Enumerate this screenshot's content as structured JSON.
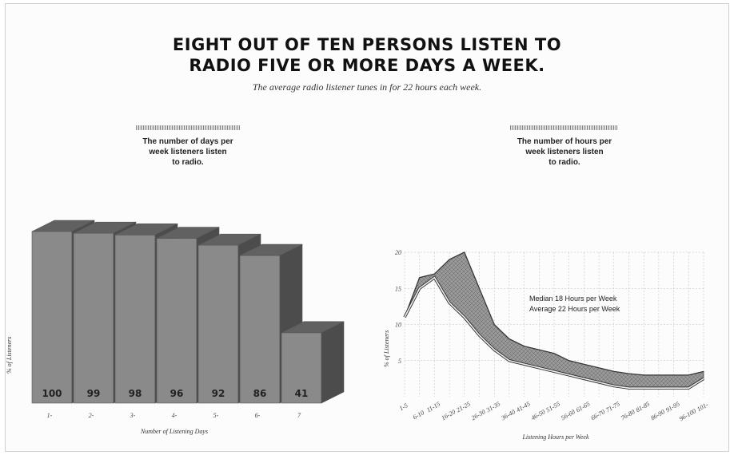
{
  "title_line1": "EIGHT OUT OF TEN PERSONS LISTEN TO",
  "title_line2": "RADIO FIVE OR MORE DAYS A WEEK.",
  "subtitle": "The average radio listener tunes in for 22 hours each week.",
  "chart_data": [
    {
      "type": "bar",
      "caption": [
        "The number of days per",
        "week listeners listen",
        "to radio."
      ],
      "categories": [
        "1-",
        "2-",
        "3-",
        "4-",
        "5-",
        "6-",
        "7"
      ],
      "values": [
        100,
        99,
        98,
        96,
        92,
        86,
        41
      ],
      "value_labels": [
        "100",
        "99",
        "98",
        "96",
        "92",
        "86",
        "41"
      ],
      "xlabel": "Number of Listening Days",
      "ylabel": "% of Listeners",
      "ylim": [
        0,
        100
      ],
      "bar_color": "#8a8a8a"
    },
    {
      "type": "area",
      "caption": [
        "The number of hours per",
        "week listeners listen",
        "to radio."
      ],
      "categories": [
        "1-5",
        "6-10",
        "11-15",
        "16-20",
        "21-25",
        "26-30",
        "31-35",
        "36-40",
        "41-45",
        "46-50",
        "51-55",
        "56-60",
        "61-65",
        "66-70",
        "71-75",
        "76-80",
        "81-85",
        "86-90",
        "91-95",
        "96-100",
        "101-"
      ],
      "series": [
        {
          "values": [
            11,
            16.5,
            17,
            19,
            20,
            15,
            10,
            8,
            7,
            6.5,
            6,
            5,
            4.5,
            4,
            3.5,
            3.2,
            3,
            3,
            3,
            3,
            3.5
          ]
        },
        {
          "values": [
            11,
            15,
            16.5,
            13,
            11,
            8.5,
            6.5,
            5,
            4.5,
            4,
            3.5,
            3,
            2.5,
            2,
            1.5,
            1.2,
            1.2,
            1.2,
            1.2,
            1.2,
            2.5
          ]
        }
      ],
      "yticks": [
        5,
        10,
        15,
        20
      ],
      "ylim": [
        0,
        20
      ],
      "xlabel": "Listening Hours per Week",
      "ylabel": "% of Listeners",
      "legend": [
        "Median 18 Hours per Week",
        "Average 22 Hours per Week"
      ],
      "fill_color": "#9a9a9a"
    }
  ]
}
